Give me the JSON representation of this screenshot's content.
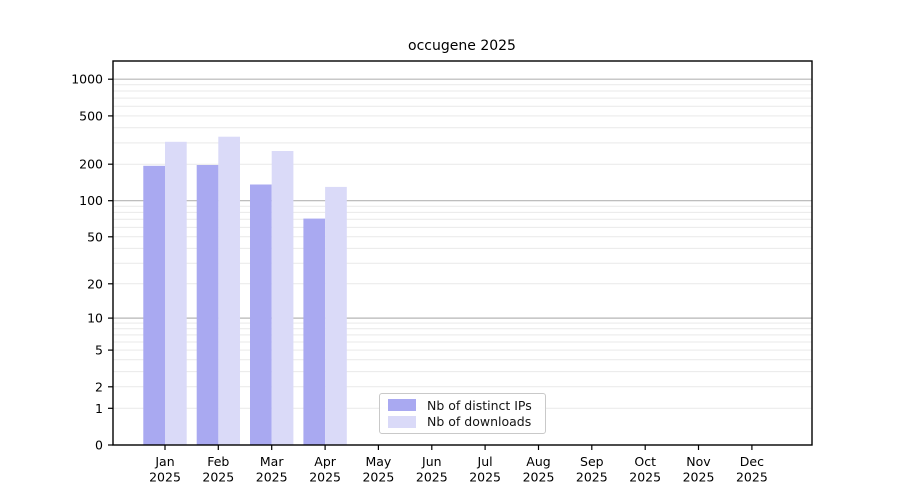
{
  "chart_data": {
    "type": "bar",
    "title": "occugene 2025",
    "x_tick_year": "2025",
    "categories": [
      "Jan",
      "Feb",
      "Mar",
      "Apr",
      "May",
      "Jun",
      "Jul",
      "Aug",
      "Sep",
      "Oct",
      "Nov",
      "Dec"
    ],
    "series": [
      {
        "name": "Nb of distinct IPs",
        "color": "#a9a9f1",
        "values": [
          194,
          197,
          136,
          71,
          0,
          0,
          0,
          0,
          0,
          0,
          0,
          0
        ]
      },
      {
        "name": "Nb of downloads",
        "color": "#dadaf8",
        "values": [
          306,
          337,
          257,
          130,
          0,
          0,
          0,
          0,
          0,
          0,
          0,
          0
        ]
      }
    ],
    "y_ticks": [
      0,
      1,
      2,
      5,
      10,
      20,
      50,
      100,
      200,
      500,
      1000
    ],
    "y_scale": "log10(value+1)",
    "ylim_top": 1400,
    "grid": true,
    "legend_position": "inside-bottom-center",
    "colors": {
      "major_grid": "#b5b5b5",
      "minor_grid": "#e9e9e9",
      "axis": "#000000",
      "text": "#000000",
      "background": "#ffffff"
    }
  }
}
